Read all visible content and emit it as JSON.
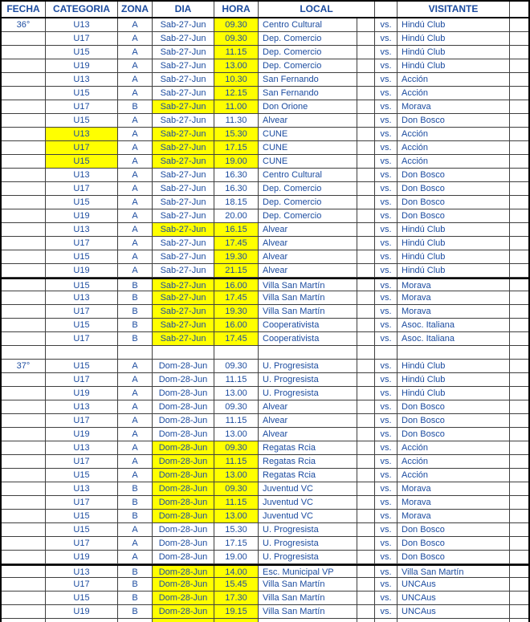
{
  "table": {
    "header": {
      "fecha": "FECHA",
      "categoria": "CATEGORIA",
      "zona": "ZONA",
      "dia": "DIA",
      "hora": "HORA",
      "local": "LOCAL",
      "visitante": "VISITANTE"
    },
    "vs_label": "vs.",
    "highlight_color": "#FFFF00",
    "text_color": "#1b4b9f",
    "rows": [
      {
        "fecha": "36°",
        "categoria": "U13",
        "zona": "A",
        "dia": "Sab-27-Jun",
        "hora": "09.30",
        "local": "Centro Cultural",
        "visitante": "Hindú Club",
        "hl": [
          "hora"
        ]
      },
      {
        "fecha": "",
        "categoria": "U17",
        "zona": "A",
        "dia": "Sab-27-Jun",
        "hora": "09.30",
        "local": "Dep. Comercio",
        "visitante": "Hindú Club",
        "hl": [
          "hora"
        ]
      },
      {
        "fecha": "",
        "categoria": "U15",
        "zona": "A",
        "dia": "Sab-27-Jun",
        "hora": "11.15",
        "local": "Dep. Comercio",
        "visitante": "Hindú Club",
        "hl": [
          "hora"
        ]
      },
      {
        "fecha": "",
        "categoria": "U19",
        "zona": "A",
        "dia": "Sab-27-Jun",
        "hora": "13.00",
        "local": "Dep. Comercio",
        "visitante": "Hindú Club",
        "hl": [
          "hora"
        ]
      },
      {
        "fecha": "",
        "categoria": "U13",
        "zona": "A",
        "dia": "Sab-27-Jun",
        "hora": "10.30",
        "local": "San Fernando",
        "visitante": "Acción",
        "hl": [
          "hora"
        ]
      },
      {
        "fecha": "",
        "categoria": "U15",
        "zona": "A",
        "dia": "Sab-27-Jun",
        "hora": "12.15",
        "local": "San Fernando",
        "visitante": "Acción",
        "hl": [
          "hora"
        ]
      },
      {
        "fecha": "",
        "categoria": "U17",
        "zona": "B",
        "dia": "Sab-27-Jun",
        "hora": "11.00",
        "local": "Don Orione",
        "visitante": "Morava",
        "hl": [
          "dia",
          "hora"
        ]
      },
      {
        "fecha": "",
        "categoria": "U15",
        "zona": "A",
        "dia": "Sab-27-Jun",
        "hora": "11.30",
        "local": "Alvear",
        "visitante": "Don Bosco",
        "hl": []
      },
      {
        "fecha": "",
        "categoria": "U13",
        "zona": "A",
        "dia": "Sab-27-Jun",
        "hora": "15.30",
        "local": "CUNE",
        "visitante": "Acción",
        "hl": [
          "categoria",
          "dia",
          "hora"
        ]
      },
      {
        "fecha": "",
        "categoria": "U17",
        "zona": "A",
        "dia": "Sab-27-Jun",
        "hora": "17.15",
        "local": "CUNE",
        "visitante": "Acción",
        "hl": [
          "categoria",
          "dia",
          "hora"
        ]
      },
      {
        "fecha": "",
        "categoria": "U15",
        "zona": "A",
        "dia": "Sab-27-Jun",
        "hora": "19.00",
        "local": "CUNE",
        "visitante": "Acción",
        "hl": [
          "categoria",
          "dia",
          "hora"
        ]
      },
      {
        "fecha": "",
        "categoria": "U13",
        "zona": "A",
        "dia": "Sab-27-Jun",
        "hora": "16.30",
        "local": "Centro Cultural",
        "visitante": "Don Bosco",
        "hl": []
      },
      {
        "fecha": "",
        "categoria": "U17",
        "zona": "A",
        "dia": "Sab-27-Jun",
        "hora": "16.30",
        "local": "Dep. Comercio",
        "visitante": "Don Bosco",
        "hl": []
      },
      {
        "fecha": "",
        "categoria": "U15",
        "zona": "A",
        "dia": "Sab-27-Jun",
        "hora": "18.15",
        "local": "Dep. Comercio",
        "visitante": "Don Bosco",
        "hl": []
      },
      {
        "fecha": "",
        "categoria": "U19",
        "zona": "A",
        "dia": "Sab-27-Jun",
        "hora": "20.00",
        "local": "Dep. Comercio",
        "visitante": "Don Bosco",
        "hl": []
      },
      {
        "fecha": "",
        "categoria": "U13",
        "zona": "A",
        "dia": "Sab-27-Jun",
        "hora": "16.15",
        "local": "Alvear",
        "visitante": "Hindú Club",
        "hl": [
          "dia",
          "hora"
        ]
      },
      {
        "fecha": "",
        "categoria": "U17",
        "zona": "A",
        "dia": "Sab-27-Jun",
        "hora": "17.45",
        "local": "Alvear",
        "visitante": "Hindú Club",
        "hl": [
          "hora"
        ]
      },
      {
        "fecha": "",
        "categoria": "U15",
        "zona": "A",
        "dia": "Sab-27-Jun",
        "hora": "19.30",
        "local": "Alvear",
        "visitante": "Hindú Club",
        "hl": [
          "hora"
        ]
      },
      {
        "fecha": "",
        "categoria": "U19",
        "zona": "A",
        "dia": "Sab-27-Jun",
        "hora": "21.15",
        "local": "Alvear",
        "visitante": "Hindú Club",
        "hl": [
          "hora"
        ]
      },
      {
        "fecha": "",
        "categoria": "U15",
        "zona": "B",
        "dia": "Sab-27-Jun",
        "hora": "16.00",
        "local": "Villa San Martín",
        "visitante": "Morava",
        "hl": [
          "dia",
          "hora"
        ],
        "thick_top": true
      },
      {
        "fecha": "",
        "categoria": "U13",
        "zona": "B",
        "dia": "Sab-27-Jun",
        "hora": "17.45",
        "local": "Villa San Martín",
        "visitante": "Morava",
        "hl": [
          "dia",
          "hora"
        ]
      },
      {
        "fecha": "",
        "categoria": "U17",
        "zona": "B",
        "dia": "Sab-27-Jun",
        "hora": "19.30",
        "local": "Villa San Martín",
        "visitante": "Morava",
        "hl": [
          "dia",
          "hora"
        ]
      },
      {
        "fecha": "",
        "categoria": "U15",
        "zona": "B",
        "dia": "Sab-27-Jun",
        "hora": "16.00",
        "local": "Cooperativista",
        "visitante": "Asoc. Italiana",
        "hl": [
          "dia",
          "hora"
        ]
      },
      {
        "fecha": "",
        "categoria": "U17",
        "zona": "B",
        "dia": "Sab-27-Jun",
        "hora": "17.45",
        "local": "Cooperativista",
        "visitante": "Asoc. Italiana",
        "hl": [
          "dia",
          "hora"
        ]
      },
      {
        "type": "blank"
      },
      {
        "fecha": "37°",
        "categoria": "U15",
        "zona": "A",
        "dia": "Dom-28-Jun",
        "hora": "09.30",
        "local": "U. Progresista",
        "visitante": "Hindú Club",
        "hl": []
      },
      {
        "fecha": "",
        "categoria": "U17",
        "zona": "A",
        "dia": "Dom-28-Jun",
        "hora": "11.15",
        "local": "U. Progresista",
        "visitante": "Hindú Club",
        "hl": []
      },
      {
        "fecha": "",
        "categoria": "U19",
        "zona": "A",
        "dia": "Dom-28-Jun",
        "hora": "13.00",
        "local": "U. Progresista",
        "visitante": "Hindú Club",
        "hl": []
      },
      {
        "fecha": "",
        "categoria": "U13",
        "zona": "A",
        "dia": "Dom-28-Jun",
        "hora": "09.30",
        "local": "Alvear",
        "visitante": "Don Bosco",
        "hl": []
      },
      {
        "fecha": "",
        "categoria": "U17",
        "zona": "A",
        "dia": "Dom-28-Jun",
        "hora": "11.15",
        "local": "Alvear",
        "visitante": "Don Bosco",
        "hl": []
      },
      {
        "fecha": "",
        "categoria": "U19",
        "zona": "A",
        "dia": "Dom-28-Jun",
        "hora": "13.00",
        "local": "Alvear",
        "visitante": "Don Bosco",
        "hl": []
      },
      {
        "fecha": "",
        "categoria": "U13",
        "zona": "A",
        "dia": "Dom-28-Jun",
        "hora": "09.30",
        "local": "Regatas Rcia",
        "visitante": "Acción",
        "hl": [
          "dia",
          "hora"
        ]
      },
      {
        "fecha": "",
        "categoria": "U17",
        "zona": "A",
        "dia": "Dom-28-Jun",
        "hora": "11.15",
        "local": "Regatas Rcia",
        "visitante": "Acción",
        "hl": [
          "dia",
          "hora"
        ]
      },
      {
        "fecha": "",
        "categoria": "U15",
        "zona": "A",
        "dia": "Dom-28-Jun",
        "hora": "13.00",
        "local": "Regatas Rcia",
        "visitante": "Acción",
        "hl": [
          "dia",
          "hora"
        ]
      },
      {
        "fecha": "",
        "categoria": "U13",
        "zona": "B",
        "dia": "Dom-28-Jun",
        "hora": "09.30",
        "local": "Juventud VC",
        "visitante": "Morava",
        "hl": [
          "dia",
          "hora"
        ]
      },
      {
        "fecha": "",
        "categoria": "U17",
        "zona": "B",
        "dia": "Dom-28-Jun",
        "hora": "11.15",
        "local": "Juventud VC",
        "visitante": "Morava",
        "hl": [
          "dia",
          "hora"
        ]
      },
      {
        "fecha": "",
        "categoria": "U15",
        "zona": "B",
        "dia": "Dom-28-Jun",
        "hora": "13.00",
        "local": "Juventud VC",
        "visitante": "Morava",
        "hl": [
          "dia",
          "hora"
        ]
      },
      {
        "fecha": "",
        "categoria": "U15",
        "zona": "A",
        "dia": "Dom-28-Jun",
        "hora": "15.30",
        "local": "U. Progresista",
        "visitante": "Don Bosco",
        "hl": []
      },
      {
        "fecha": "",
        "categoria": "U17",
        "zona": "A",
        "dia": "Dom-28-Jun",
        "hora": "17.15",
        "local": "U. Progresista",
        "visitante": "Don Bosco",
        "hl": []
      },
      {
        "fecha": "",
        "categoria": "U19",
        "zona": "A",
        "dia": "Dom-28-Jun",
        "hora": "19.00",
        "local": "U. Progresista",
        "visitante": "Don Bosco",
        "hl": []
      },
      {
        "fecha": "",
        "categoria": "U13",
        "zona": "B",
        "dia": "Dom-28-Jun",
        "hora": "14.00",
        "local": "Esc. Municipal VP",
        "visitante": "Villa San Martín",
        "hl": [
          "dia",
          "hora"
        ],
        "thick_top": true
      },
      {
        "fecha": "",
        "categoria": "U17",
        "zona": "B",
        "dia": "Dom-28-Jun",
        "hora": "15.45",
        "local": "Villa San Martín",
        "visitante": "UNCAus",
        "hl": [
          "dia",
          "hora"
        ]
      },
      {
        "fecha": "",
        "categoria": "U15",
        "zona": "B",
        "dia": "Dom-28-Jun",
        "hora": "17.30",
        "local": "Villa San Martín",
        "visitante": "UNCAus",
        "hl": [
          "dia",
          "hora"
        ]
      },
      {
        "fecha": "",
        "categoria": "U19",
        "zona": "B",
        "dia": "Dom-28-Jun",
        "hora": "19.15",
        "local": "Villa San Martín",
        "visitante": "UNCAus",
        "hl": [
          "dia",
          "hora"
        ]
      },
      {
        "type": "partial",
        "hl": [
          "dia",
          "hora"
        ]
      }
    ]
  }
}
